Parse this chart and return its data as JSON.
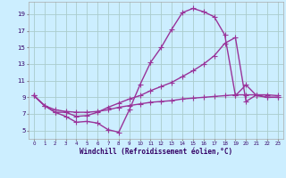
{
  "bg_color": "#cceeff",
  "grid_color": "#aacccc",
  "line_color": "#993399",
  "marker": "+",
  "marker_size": 4,
  "line_width": 1.0,
  "xlabel": "Windchill (Refroidissement éolien,°C)",
  "xlabel_fontsize": 5.5,
  "ylabel_ticks": [
    5,
    7,
    9,
    11,
    13,
    15,
    17,
    19
  ],
  "xlabel_ticks": [
    0,
    1,
    2,
    3,
    4,
    5,
    6,
    7,
    8,
    9,
    10,
    11,
    12,
    13,
    14,
    15,
    16,
    17,
    18,
    19,
    20,
    21,
    22,
    23
  ],
  "xlim": [
    -0.5,
    23.5
  ],
  "ylim": [
    4.0,
    20.5
  ],
  "s1_x": [
    0,
    1,
    2,
    3,
    4,
    5,
    6,
    7,
    8,
    9,
    10,
    11,
    12,
    13,
    14,
    15,
    16,
    17,
    18,
    19,
    20,
    21,
    22,
    23
  ],
  "s1_y": [
    9.2,
    8.0,
    7.2,
    6.7,
    6.0,
    6.1,
    5.9,
    5.1,
    4.8,
    7.5,
    10.5,
    13.2,
    15.0,
    17.2,
    19.2,
    19.7,
    19.3,
    18.7,
    16.5,
    9.2,
    10.5,
    9.2,
    9.0,
    9.0
  ],
  "s2_x": [
    0,
    1,
    2,
    3,
    4,
    5,
    6,
    7,
    8,
    9,
    10,
    11,
    12,
    13,
    14,
    15,
    16,
    17,
    18,
    19,
    20,
    21,
    22,
    23
  ],
  "s2_y": [
    9.2,
    8.0,
    7.2,
    7.2,
    6.7,
    6.8,
    7.2,
    7.8,
    8.3,
    8.8,
    9.2,
    9.8,
    10.3,
    10.8,
    11.5,
    12.2,
    13.0,
    14.0,
    15.5,
    16.2,
    8.5,
    9.3,
    9.0,
    9.0
  ],
  "s3_x": [
    0,
    1,
    2,
    3,
    4,
    5,
    6,
    7,
    8,
    9,
    10,
    11,
    12,
    13,
    14,
    15,
    16,
    17,
    18,
    19,
    20,
    21,
    22,
    23
  ],
  "s3_y": [
    9.2,
    8.0,
    7.5,
    7.3,
    7.2,
    7.2,
    7.3,
    7.5,
    7.8,
    8.0,
    8.2,
    8.4,
    8.5,
    8.6,
    8.8,
    8.9,
    9.0,
    9.1,
    9.2,
    9.3,
    9.3,
    9.3,
    9.3,
    9.2
  ]
}
